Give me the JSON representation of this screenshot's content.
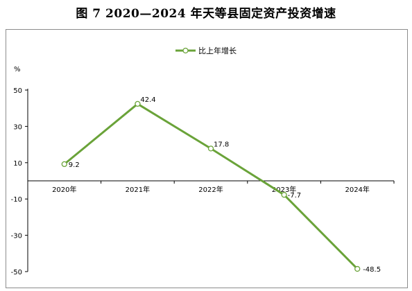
{
  "title": "图 7  2020—2024 年天等县固定资产投资增速",
  "chart_data": {
    "type": "line",
    "categories": [
      "2020年",
      "2021年",
      "2022年",
      "2023年",
      "2024年"
    ],
    "series": [
      {
        "name": "比上年增长",
        "values": [
          9.2,
          42.4,
          17.8,
          -7.7,
          -48.5
        ],
        "color": "#6aa339"
      }
    ],
    "data_labels": [
      "9.2",
      "42.4",
      "17.8",
      "-7.7",
      "-48.5"
    ],
    "y_unit": "%",
    "y_ticks": [
      50,
      30,
      10,
      -10,
      -30,
      -50
    ],
    "ylim": [
      -50,
      50
    ],
    "grid": false,
    "legend_position": "top-center"
  }
}
